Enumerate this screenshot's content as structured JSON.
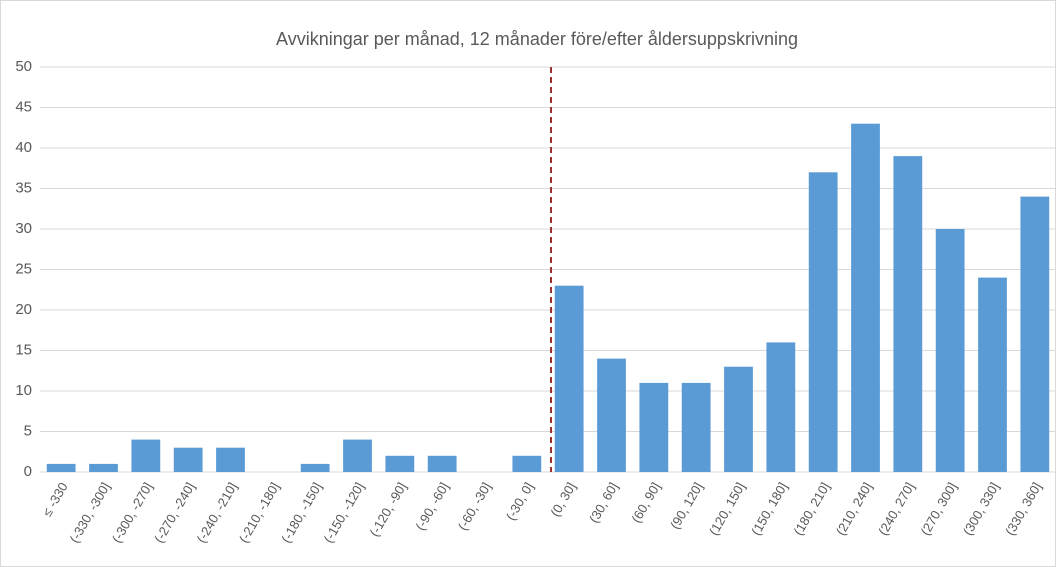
{
  "chart_data": {
    "type": "bar",
    "title": "Avvikningar per månad, 12 månader före/efter åldersuppskrivning",
    "categories": [
      "≤ -330",
      "(-330, -300]",
      "(-300, -270]",
      "(-270, -240]",
      "(-240, -210]",
      "(-210, -180]",
      "(-180, -150]",
      "(-150, -120]",
      "(-120, -90]",
      "(-90, -60]",
      "(-60, -30]",
      "(-30, 0]",
      "(0, 30]",
      "(30, 60]",
      "(60, 90]",
      "(90, 120]",
      "(120, 150]",
      "(150, 180]",
      "(180, 210]",
      "(210, 240]",
      "(240, 270]",
      "(270, 300]",
      "(300, 330]",
      "(330, 360]"
    ],
    "values": [
      1,
      1,
      4,
      3,
      3,
      0,
      1,
      4,
      2,
      2,
      0,
      2,
      23,
      14,
      11,
      11,
      13,
      16,
      37,
      43,
      39,
      30,
      24,
      34
    ],
    "color": "#5b9bd5",
    "ylim": [
      0,
      50
    ],
    "yticks": [
      0,
      5,
      10,
      15,
      20,
      25,
      30,
      35,
      40,
      45,
      50
    ],
    "grid": true
  }
}
